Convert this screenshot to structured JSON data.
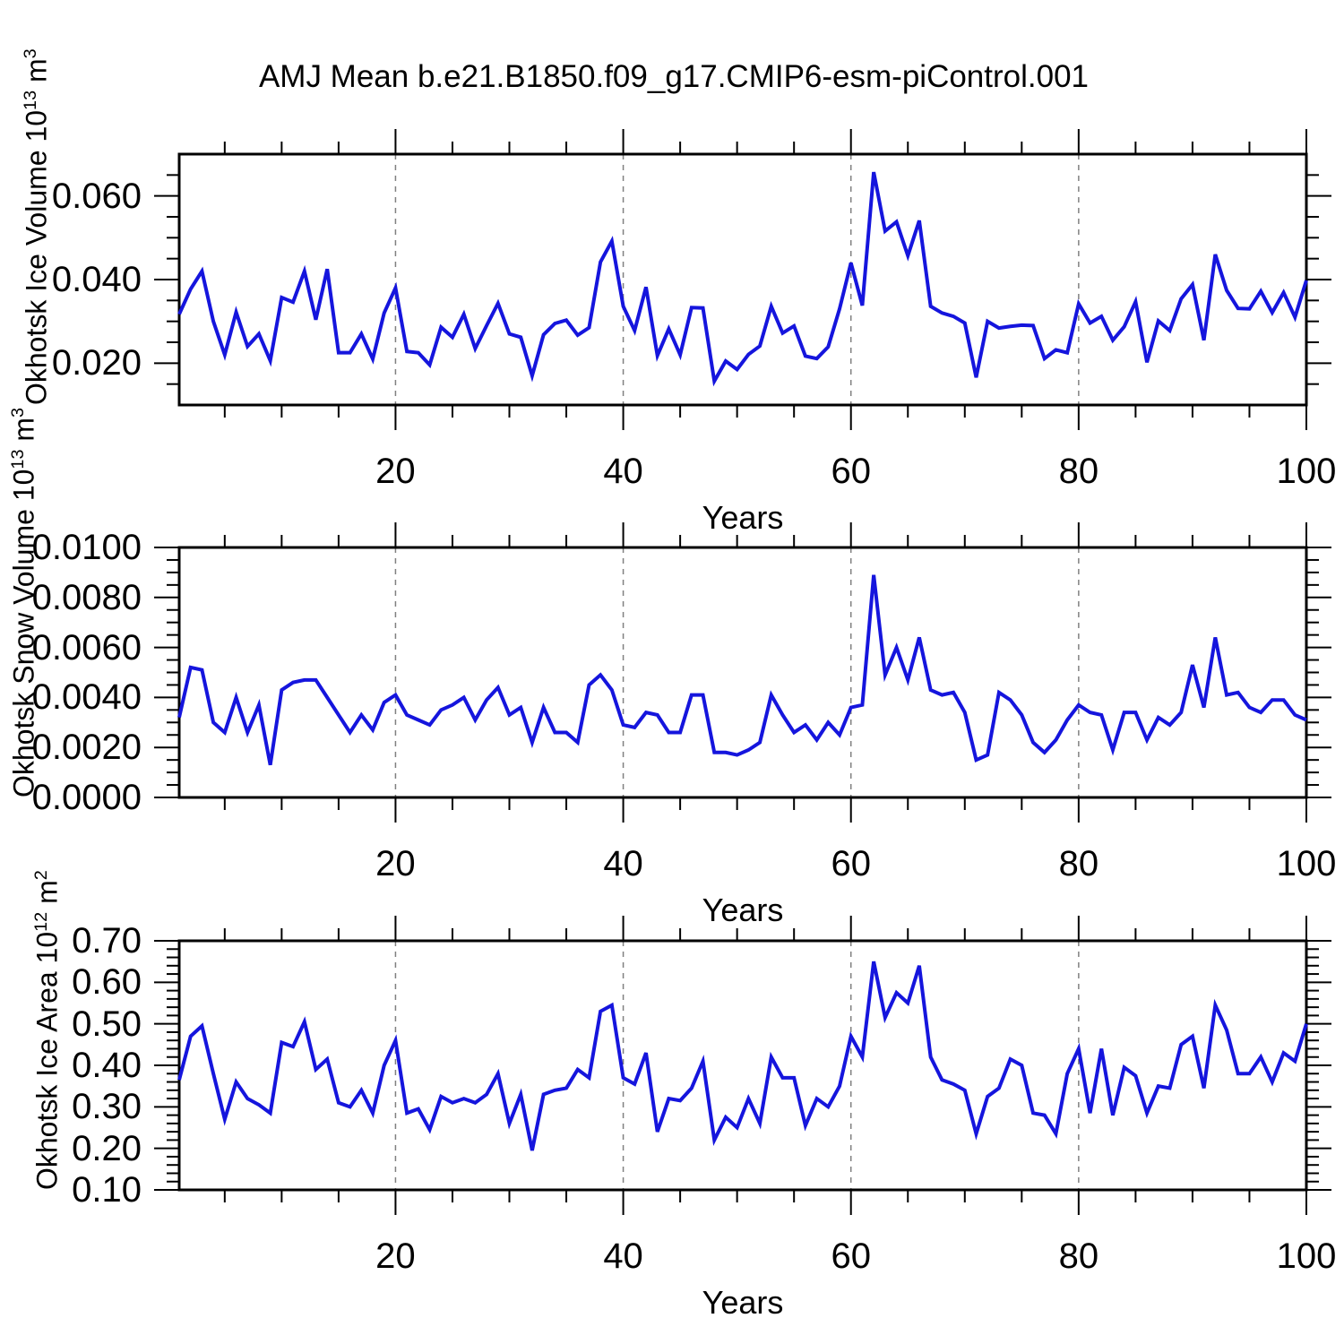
{
  "title": "AMJ Mean b.e21.B1850.f09_g17.CMIP6-esm-piControl.001",
  "colors": {
    "line": "#1515dd",
    "axis": "#000000",
    "gridline": "#808080",
    "background": "#ffffff"
  },
  "years_range": [
    1,
    100
  ],
  "chart_data": [
    {
      "type": "line",
      "series_name": "Okhotsk Ice Volume",
      "ylabel": "Okhotsk Ice Volume 10¹³ m³",
      "ylabel_parts": [
        "Okhotsk Ice Volume 10",
        {
          "sup": "13"
        },
        " m",
        {
          "sup": "3"
        }
      ],
      "xlabel": "Years",
      "x_start": 1,
      "x_end": 100,
      "ylim": [
        0.01,
        0.07
      ],
      "y_major_ticks": [
        0.02,
        0.04,
        0.06
      ],
      "y_tick_labels": [
        "0.020",
        "0.040",
        "0.060"
      ],
      "y_major_step": 0.02,
      "y_minor_step": 0.005,
      "x_major_ticks": [
        20,
        40,
        60,
        80,
        100
      ],
      "x_tick_labels": [
        "20",
        "40",
        "60",
        "80",
        "100"
      ],
      "x_minor_step": 5,
      "gridline_years": [
        20,
        40,
        60,
        80
      ],
      "grid": "dashed-vertical",
      "values": [
        0.0317,
        0.0377,
        0.042,
        0.03,
        0.022,
        0.0322,
        0.024,
        0.027,
        0.0206,
        0.0357,
        0.0346,
        0.042,
        0.0304,
        0.0425,
        0.0225,
        0.0225,
        0.027,
        0.021,
        0.032,
        0.038,
        0.0228,
        0.0225,
        0.0196,
        0.0286,
        0.0262,
        0.0317,
        0.0235,
        0.029,
        0.0343,
        0.027,
        0.0262,
        0.017,
        0.0268,
        0.0295,
        0.0303,
        0.0267,
        0.0285,
        0.0442,
        0.0492,
        0.0336,
        0.0278,
        0.0382,
        0.0218,
        0.0282,
        0.022,
        0.0333,
        0.0332,
        0.0157,
        0.0205,
        0.0185,
        0.0221,
        0.0241,
        0.0336,
        0.0272,
        0.0289,
        0.0217,
        0.0211,
        0.0239,
        0.033,
        0.044,
        0.0338,
        0.0657,
        0.0516,
        0.0538,
        0.0457,
        0.0541,
        0.0336,
        0.032,
        0.0312,
        0.0296,
        0.0166,
        0.03,
        0.0284,
        0.0288,
        0.0291,
        0.029,
        0.0211,
        0.0232,
        0.0225,
        0.0342,
        0.0296,
        0.0312,
        0.0255,
        0.0287,
        0.0347,
        0.0202,
        0.0301,
        0.0278,
        0.0354,
        0.0388,
        0.0255,
        0.046,
        0.0374,
        0.0331,
        0.033,
        0.0372,
        0.0321,
        0.0369,
        0.031,
        0.0398
      ]
    },
    {
      "type": "line",
      "series_name": "Okhotsk Snow Volume",
      "ylabel": "Okhotsk Snow Volume 10¹³ m³",
      "ylabel_parts": [
        "Okhotsk Snow Volume 10",
        {
          "sup": "13"
        },
        " m",
        {
          "sup": "3"
        }
      ],
      "xlabel": "Years",
      "x_start": 1,
      "x_end": 100,
      "ylim": [
        0.0,
        0.01
      ],
      "y_major_ticks": [
        0.0,
        0.002,
        0.004,
        0.006,
        0.008,
        0.01
      ],
      "y_tick_labels": [
        "0.0000",
        "0.0020",
        "0.0040",
        "0.0060",
        "0.0080",
        "0.0100"
      ],
      "y_major_step": 0.002,
      "y_minor_step": 0.0005,
      "x_major_ticks": [
        20,
        40,
        60,
        80,
        100
      ],
      "x_tick_labels": [
        "20",
        "40",
        "60",
        "80",
        "100"
      ],
      "x_minor_step": 5,
      "gridline_years": [
        20,
        40,
        60,
        80
      ],
      "grid": "dashed-vertical",
      "values": [
        0.0032,
        0.0052,
        0.0051,
        0.003,
        0.0026,
        0.004,
        0.0026,
        0.0037,
        0.0013,
        0.0043,
        0.0046,
        0.0047,
        0.0047,
        0.004,
        0.0033,
        0.0026,
        0.0033,
        0.0027,
        0.0038,
        0.0041,
        0.0033,
        0.0031,
        0.0029,
        0.0035,
        0.0037,
        0.004,
        0.0031,
        0.0039,
        0.0044,
        0.0033,
        0.0036,
        0.0022,
        0.0036,
        0.0026,
        0.0026,
        0.0022,
        0.0045,
        0.0049,
        0.0043,
        0.0029,
        0.0028,
        0.0034,
        0.0033,
        0.0026,
        0.0026,
        0.0041,
        0.0041,
        0.0018,
        0.0018,
        0.0017,
        0.0019,
        0.0022,
        0.0041,
        0.0033,
        0.0026,
        0.0029,
        0.0023,
        0.003,
        0.0025,
        0.0036,
        0.0037,
        0.0089,
        0.0049,
        0.006,
        0.0047,
        0.0064,
        0.0043,
        0.0041,
        0.0042,
        0.0034,
        0.0015,
        0.0017,
        0.0042,
        0.0039,
        0.0033,
        0.0022,
        0.0018,
        0.0023,
        0.0031,
        0.0037,
        0.0034,
        0.0033,
        0.0019,
        0.0034,
        0.0034,
        0.0023,
        0.0032,
        0.0029,
        0.0034,
        0.0053,
        0.0036,
        0.0064,
        0.0041,
        0.0042,
        0.0036,
        0.0034,
        0.0039,
        0.0039,
        0.0033,
        0.0031
      ]
    },
    {
      "type": "line",
      "series_name": "Okhotsk Ice Area",
      "ylabel": "Okhotsk Ice Area 10¹² m²",
      "ylabel_parts": [
        "Okhotsk Ice Area 10",
        {
          "sup": "12"
        },
        " m",
        {
          "sup": "2"
        }
      ],
      "xlabel": "Years",
      "x_start": 1,
      "x_end": 100,
      "ylim": [
        0.1,
        0.7
      ],
      "y_major_ticks": [
        0.1,
        0.2,
        0.3,
        0.4,
        0.5,
        0.6,
        0.7
      ],
      "y_tick_labels": [
        "0.10",
        "0.20",
        "0.30",
        "0.40",
        "0.50",
        "0.60",
        "0.70"
      ],
      "y_major_step": 0.1,
      "y_minor_step": 0.02,
      "x_major_ticks": [
        20,
        40,
        60,
        80,
        100
      ],
      "x_tick_labels": [
        "20",
        "40",
        "60",
        "80",
        "100"
      ],
      "x_minor_step": 5,
      "gridline_years": [
        20,
        40,
        60,
        80
      ],
      "grid": "dashed-vertical",
      "values": [
        0.365,
        0.47,
        0.495,
        0.38,
        0.27,
        0.36,
        0.32,
        0.305,
        0.285,
        0.455,
        0.445,
        0.505,
        0.39,
        0.415,
        0.31,
        0.3,
        0.34,
        0.285,
        0.4,
        0.46,
        0.285,
        0.295,
        0.245,
        0.325,
        0.31,
        0.32,
        0.31,
        0.33,
        0.38,
        0.26,
        0.33,
        0.195,
        0.33,
        0.34,
        0.345,
        0.39,
        0.37,
        0.53,
        0.545,
        0.37,
        0.355,
        0.43,
        0.24,
        0.32,
        0.315,
        0.345,
        0.41,
        0.22,
        0.275,
        0.25,
        0.32,
        0.26,
        0.42,
        0.37,
        0.37,
        0.255,
        0.32,
        0.3,
        0.35,
        0.47,
        0.42,
        0.65,
        0.515,
        0.575,
        0.55,
        0.64,
        0.42,
        0.365,
        0.355,
        0.34,
        0.235,
        0.325,
        0.345,
        0.415,
        0.4,
        0.285,
        0.28,
        0.235,
        0.38,
        0.44,
        0.285,
        0.44,
        0.28,
        0.395,
        0.375,
        0.285,
        0.35,
        0.345,
        0.45,
        0.47,
        0.345,
        0.545,
        0.485,
        0.38,
        0.38,
        0.42,
        0.36,
        0.43,
        0.41,
        0.5
      ]
    }
  ]
}
